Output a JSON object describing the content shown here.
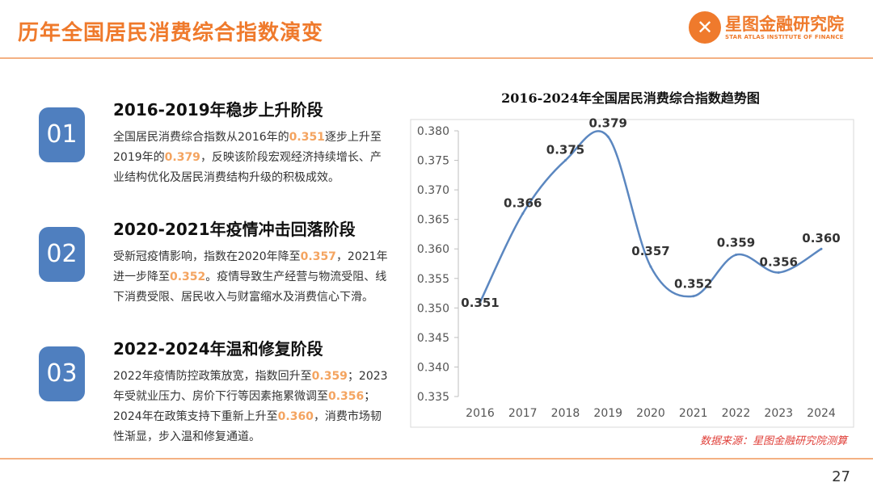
{
  "header": {
    "title": "历年全国居民消费综合指数演变",
    "logo_cn": "星图金融研究院",
    "logo_en": "STAR ATLAS INSTITUTE OF FINANCE",
    "page": "27"
  },
  "sections": [
    {
      "num": "01",
      "heading": "2016-2019年稳步上升阶段",
      "parts": [
        {
          "t": "全国居民消费综合指数从2016年的"
        },
        {
          "t": "0.351",
          "hl": true
        },
        {
          "t": "逐步上升至2019年的"
        },
        {
          "t": "0.379",
          "hl": true
        },
        {
          "t": "，反映该阶段宏观经济持续增长、产业结构优化及居民消费结构升级的积极成效。"
        }
      ]
    },
    {
      "num": "02",
      "heading": "2020-2021年疫情冲击回落阶段",
      "parts": [
        {
          "t": "受新冠疫情影响，指数在2020年降至"
        },
        {
          "t": "0.357",
          "hl": true
        },
        {
          "t": "，2021年进一步降至"
        },
        {
          "t": "0.352",
          "hl": true
        },
        {
          "t": "。疫情导致生产经营与物流受阻、线下消费受限、居民收入与财富缩水及消费信心下滑。"
        }
      ]
    },
    {
      "num": "03",
      "heading": "2022-2024年温和修复阶段",
      "parts": [
        {
          "t": "2022年疫情防控政策放宽，指数回升至"
        },
        {
          "t": "0.359",
          "hl": true
        },
        {
          "t": "；2023年受就业压力、房价下行等因素拖累微调至"
        },
        {
          "t": "0.356",
          "hl": true
        },
        {
          "t": "；2024年在政策支持下重新上升至"
        },
        {
          "t": "0.360",
          "hl": true
        },
        {
          "t": "，消费市场韧性渐显，步入温和修复通道。"
        }
      ]
    }
  ],
  "chart_data": {
    "type": "line",
    "title": "2016-2024年全国居民消费综合指数趋势图",
    "categories": [
      "2016",
      "2017",
      "2018",
      "2019",
      "2020",
      "2021",
      "2022",
      "2023",
      "2024"
    ],
    "values": [
      0.351,
      0.366,
      0.375,
      0.379,
      0.357,
      0.352,
      0.359,
      0.356,
      0.36
    ],
    "data_labels": [
      "0.351",
      "0.366",
      "0.375",
      "0.379",
      "0.357",
      "0.352",
      "0.359",
      "0.356",
      "0.360"
    ],
    "ylim": [
      0.335,
      0.38
    ],
    "yticks": [
      "0.335",
      "0.340",
      "0.345",
      "0.350",
      "0.355",
      "0.360",
      "0.365",
      "0.370",
      "0.375",
      "0.380"
    ],
    "xlabel": "",
    "ylabel": "",
    "smooth": true,
    "color": "#5b87c0"
  },
  "source": "数据来源：星图金融研究院测算"
}
